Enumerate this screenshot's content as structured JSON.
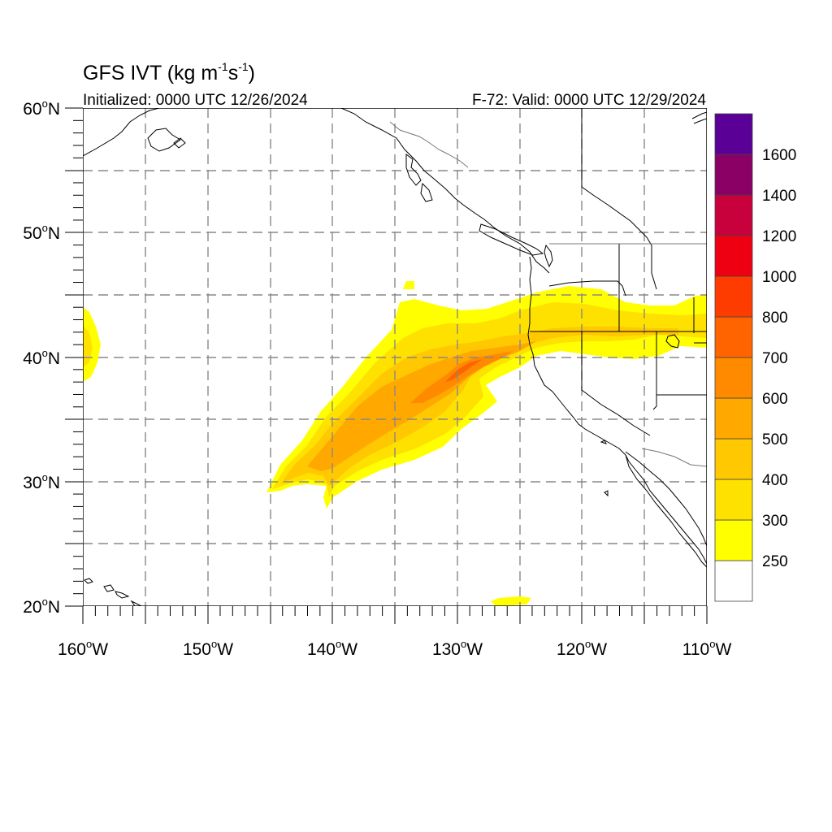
{
  "title": {
    "main": "GFS IVT (kg m",
    "sup1": "-1",
    "mid": "s",
    "sup2": "-1",
    "close": ")"
  },
  "subtitle_left": "Initialized: 0000 UTC 12/26/2024",
  "subtitle_right": "F-72: Valid: 0000 UTC 12/29/2024",
  "lat_labels": [
    "60",
    "50",
    "40",
    "30",
    "20"
  ],
  "lat_suffix": "N",
  "lon_labels": [
    "160",
    "150",
    "140",
    "130",
    "120",
    "110"
  ],
  "lon_suffix": "W",
  "degree": "o",
  "colorbar": {
    "labels": [
      "250",
      "300",
      "400",
      "500",
      "600",
      "700",
      "800",
      "1000",
      "1200",
      "1400",
      "1600"
    ],
    "colors": [
      "#ffffff",
      "#ffff00",
      "#ffe100",
      "#ffc800",
      "#ffa800",
      "#ff8a00",
      "#ff6400",
      "#ff3c00",
      "#ee0012",
      "#c8003c",
      "#8a0064",
      "#5a0096"
    ]
  },
  "chart_data": {
    "type": "heatmap",
    "variable": "IVT",
    "units": "kg m-1 s-1",
    "xlim": [
      -160,
      -110
    ],
    "ylim": [
      20,
      60
    ],
    "xticks": [
      -160,
      -150,
      -140,
      -130,
      -120,
      -110
    ],
    "yticks": [
      20,
      30,
      40,
      50,
      60
    ],
    "levels": [
      250,
      300,
      400,
      500,
      600,
      700,
      800,
      1000,
      1200,
      1400,
      1600
    ],
    "grid": true,
    "features": [
      {
        "name": "atmospheric-river",
        "max_ivt_approx": 750,
        "core_lon": -129,
        "core_lat": 39.5
      },
      {
        "name": "small-plume-hawaii",
        "max_ivt_approx": 300,
        "core_lon": -159.5,
        "core_lat": 41
      },
      {
        "name": "small-plume-south",
        "max_ivt_approx": 300,
        "core_lon": -125,
        "core_lat": 20.3
      }
    ]
  }
}
